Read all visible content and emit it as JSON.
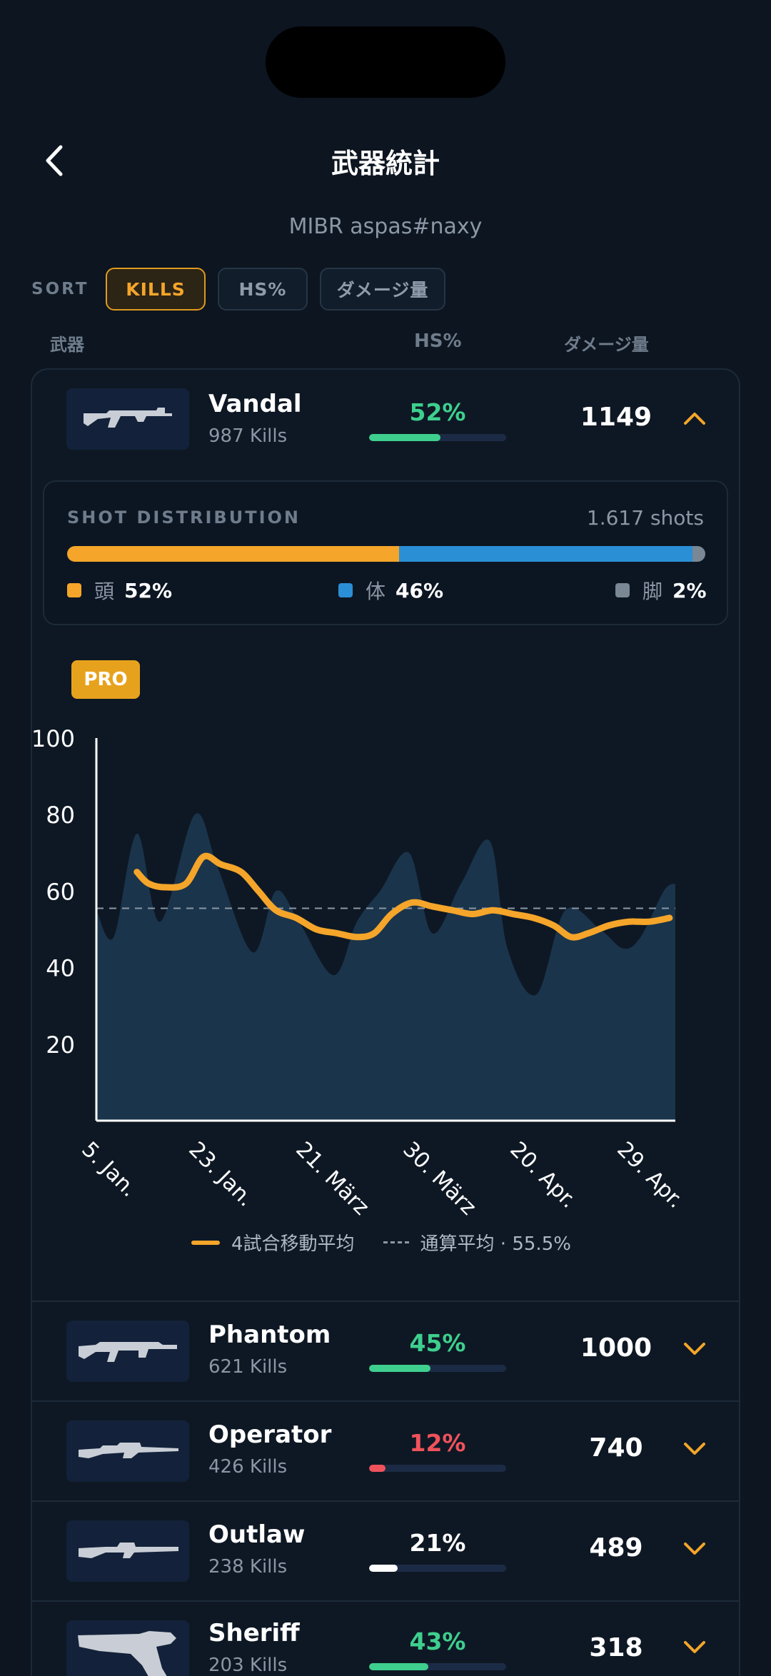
{
  "header": {
    "title": "武器統計",
    "subtitle": "MIBR aspas#naxy"
  },
  "sort": {
    "label": "SORT",
    "options": [
      "KILLS",
      "HS%",
      "ダメージ量"
    ],
    "selected": "KILLS"
  },
  "columns": {
    "weapon": "武器",
    "hs": "HS%",
    "damage": "ダメージ量"
  },
  "weapons": [
    {
      "name": "Vandal",
      "kills": "987 Kills",
      "hs": "52%",
      "hs_value": 52,
      "hs_color": "#3ecf8e",
      "damage": "1149",
      "expanded": true
    },
    {
      "name": "Phantom",
      "kills": "621 Kills",
      "hs": "45%",
      "hs_value": 45,
      "hs_color": "#3ecf8e",
      "damage": "1000",
      "expanded": false
    },
    {
      "name": "Operator",
      "kills": "426 Kills",
      "hs": "12%",
      "hs_value": 12,
      "hs_color": "#f0525c",
      "damage": "740",
      "expanded": false
    },
    {
      "name": "Outlaw",
      "kills": "238 Kills",
      "hs": "21%",
      "hs_value": 21,
      "hs_color": "#ffffff",
      "damage": "489",
      "expanded": false
    },
    {
      "name": "Sheriff",
      "kills": "203 Kills",
      "hs": "43%",
      "hs_value": 43,
      "hs_color": "#3ecf8e",
      "damage": "318",
      "expanded": false
    }
  ],
  "shot_distribution": {
    "title": "SHOT DISTRIBUTION",
    "count": "1.617 shots",
    "segments": [
      {
        "label": "頭",
        "value": "52%",
        "pct": 52,
        "color": "#f4a52a"
      },
      {
        "label": "体",
        "value": "46%",
        "pct": 46,
        "color": "#2b8fd6"
      },
      {
        "label": "脚",
        "value": "2%",
        "pct": 2,
        "color": "#7a8794"
      }
    ]
  },
  "pro_badge": "PRO",
  "chart_data": {
    "type": "line",
    "y_ticks": [
      "20",
      "40",
      "60",
      "80",
      "100"
    ],
    "ylim": [
      0,
      100
    ],
    "x_labels": [
      "5. Jan.",
      "23. Jan.",
      "21. März",
      "30. März",
      "20. Apr.",
      "29. Apr."
    ],
    "average_value": 55.5,
    "series": [
      {
        "name": "4試合移動平均",
        "color": "#f4a52a",
        "x": [
          0.07,
          0.09,
          0.12,
          0.155,
          0.185,
          0.215,
          0.25,
          0.28,
          0.31,
          0.345,
          0.38,
          0.415,
          0.45,
          0.48,
          0.51,
          0.545,
          0.58,
          0.615,
          0.65,
          0.685,
          0.72,
          0.755,
          0.79,
          0.82,
          0.85,
          0.885,
          0.92,
          0.955,
          0.99
        ],
        "values": [
          65,
          62,
          61,
          62,
          69,
          67,
          65,
          60,
          55,
          53,
          50,
          49,
          48,
          49,
          54,
          57,
          56,
          55,
          54,
          55,
          54,
          53,
          51,
          48,
          49,
          51,
          52,
          52,
          53
        ]
      },
      {
        "name": "HS%",
        "color": "#1c3a52",
        "x": [
          0,
          0.03,
          0.07,
          0.11,
          0.17,
          0.21,
          0.27,
          0.31,
          0.35,
          0.41,
          0.45,
          0.49,
          0.54,
          0.58,
          0.63,
          0.68,
          0.71,
          0.76,
          0.81,
          0.87,
          0.91,
          0.94,
          0.98,
          1.0
        ],
        "values": [
          55,
          48,
          75,
          52,
          80,
          66,
          44,
          60,
          52,
          38,
          52,
          60,
          70,
          49,
          62,
          73,
          45,
          33,
          55,
          50,
          45,
          48,
          60,
          62
        ]
      }
    ],
    "legend": {
      "moving_avg": "4試合移動平均",
      "overall_avg": "通算平均 · 55.5%"
    }
  }
}
